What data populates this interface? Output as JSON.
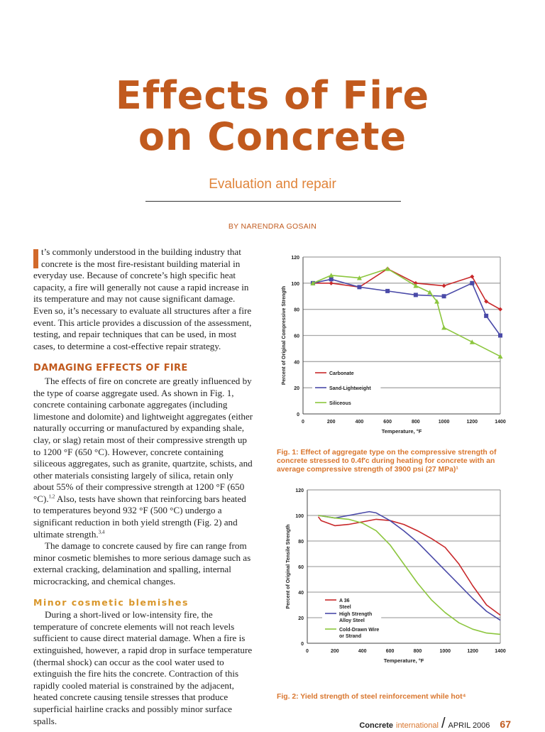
{
  "header": {
    "title_line1": "Effects of Fire",
    "title_line2": "on Concrete",
    "subtitle": "Evaluation and repair",
    "byline": "BY NARENDRA GOSAIN"
  },
  "article": {
    "intro": "t’s commonly understood in the building industry that concrete is the most fire-resistant building material in everyday use. Because of concrete’s high specific heat capacity, a fire will generally not cause a rapid increase in its temperature and may not cause significant damage. Even so, it’s necessary to evaluate all structures after a fire event. This article provides a discussion of the assessment, testing, and repair techniques that can be used, in most cases, to determine a cost-effective repair strategy.",
    "section1_heading": "DAMAGING EFFECTS OF FIRE",
    "section1_p1a": "The effects of fire on concrete are greatly influenced by the type of coarse aggregate used. As shown in Fig. 1, concrete containing carbonate aggregates (including limestone and dolomite) and lightweight aggregates (either naturally occurring or manufactured by expanding shale, clay, or slag) retain most of their compressive strength up to 1200 °F (650 °C). However, concrete containing siliceous aggregates, such as granite, quartzite, schists, and other materials consisting largely of silica, retain only about 55% of their compressive strength at 1200 °F (650 °C).",
    "section1_p1_ref1": "1,2",
    "section1_p1b": " Also, tests have shown that reinforcing bars heated to temperatures beyond 932 °F (500 °C) undergo a significant reduction in both yield strength (Fig. 2) and ultimate strength.",
    "section1_p1_ref2": "3,4",
    "section1_p2": "The damage to concrete caused by fire can range from minor cosmetic blemishes to more serious damage such as external cracking, delamination and spalling, internal microcracking, and chemical changes.",
    "section2_heading": "Minor cosmetic blemishes",
    "section2_p1": "During a short-lived or low-intensity fire, the temperature of concrete elements will not reach levels sufficient to cause direct material damage. When a fire is extinguished, however, a rapid drop in surface temperature (thermal shock) can occur as the cool water used to extinguish the fire hits the concrete. Contraction of this rapidly cooled material is constrained by the adjacent, heated concrete causing tensile stresses that produce superficial hairline cracks and possibly minor surface spalls."
  },
  "figures": {
    "fig1_caption": "Fig. 1: Effect of aggregate type on the compressive strength of concrete stressed to 0.4f′c during heating for concrete with an average compressive strength of 3900 psi (27 MPa)¹",
    "fig2_caption": "Fig. 2: Yield strength of steel reinforcement while hot⁴"
  },
  "footer": {
    "brand": "Concrete",
    "brand_suffix": "international",
    "issue": "APRIL 2006",
    "page": "67"
  },
  "colors": {
    "accent": "#c15a1e",
    "red": "#c8282a",
    "blue": "#4a4aa8",
    "green": "#8cc63e"
  },
  "chart_data": [
    {
      "type": "line",
      "xlabel": "Temperature, °F",
      "ylabel": "Percent of Original Compressive Strength",
      "xlim": [
        0,
        1400
      ],
      "ylim": [
        0,
        120
      ],
      "xticks": [
        "0",
        "200",
        "400",
        "600",
        "800",
        "1000",
        "1200",
        "1400"
      ],
      "yticks": [
        "0",
        "20",
        "40",
        "60",
        "80",
        "100",
        "120"
      ],
      "grid": true,
      "legend": "center-left",
      "markers": true,
      "series": [
        {
          "name": "Carbonate",
          "color": "#c8282a",
          "marker": "diamond",
          "x": [
            70,
            200,
            400,
            600,
            800,
            1000,
            1200,
            1300,
            1400
          ],
          "y": [
            100,
            100,
            97,
            111,
            100,
            98,
            105,
            86,
            80
          ]
        },
        {
          "name": "Sand-Lightweight",
          "color": "#4a4aa8",
          "marker": "square",
          "x": [
            70,
            200,
            400,
            600,
            800,
            1000,
            1200,
            1300,
            1400
          ],
          "y": [
            100,
            103,
            97,
            94,
            91,
            90,
            100,
            75,
            60
          ]
        },
        {
          "name": "Siliceous",
          "color": "#8cc63e",
          "marker": "triangle",
          "x": [
            70,
            200,
            400,
            600,
            800,
            900,
            950,
            1000,
            1200,
            1400
          ],
          "y": [
            100,
            106,
            104,
            111,
            98,
            93,
            86,
            66,
            55,
            44
          ]
        }
      ]
    },
    {
      "type": "line",
      "xlabel": "Temperature, °F",
      "ylabel": "Percent of Original Tensile Strength",
      "xlim": [
        0,
        1400
      ],
      "ylim": [
        0,
        120
      ],
      "xticks": [
        "0",
        "200",
        "400",
        "600",
        "800",
        "1000",
        "1200",
        "1400"
      ],
      "yticks": [
        "0",
        "20",
        "40",
        "60",
        "80",
        "100",
        "120"
      ],
      "grid": true,
      "legend": "lower-left",
      "markers": false,
      "series": [
        {
          "name": "A 36 Steel",
          "color": "#c8282a",
          "x": [
            80,
            100,
            200,
            300,
            400,
            500,
            600,
            700,
            800,
            900,
            1000,
            1100,
            1200,
            1300,
            1400
          ],
          "y": [
            99,
            96,
            92,
            93,
            95,
            97,
            96,
            93,
            88,
            82,
            75,
            62,
            45,
            30,
            22
          ]
        },
        {
          "name": "High Strength Alloy Steel",
          "color": "#4a4aa8",
          "x": [
            80,
            200,
            300,
            400,
            450,
            500,
            600,
            700,
            800,
            900,
            1000,
            1100,
            1200,
            1300,
            1400
          ],
          "y": [
            100,
            98,
            100,
            102,
            103,
            102,
            96,
            88,
            79,
            68,
            57,
            46,
            35,
            25,
            18
          ]
        },
        {
          "name": "Cold-Drawn Wire or Strand",
          "color": "#8cc63e",
          "x": [
            80,
            200,
            300,
            400,
            500,
            600,
            700,
            800,
            900,
            1000,
            1100,
            1200,
            1300,
            1400
          ],
          "y": [
            100,
            98,
            97,
            94,
            88,
            77,
            62,
            47,
            34,
            24,
            16,
            11,
            8,
            7
          ]
        }
      ]
    }
  ]
}
